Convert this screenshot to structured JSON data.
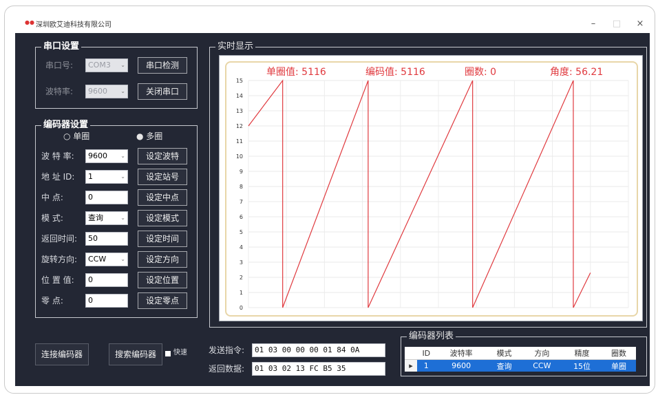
{
  "window": {
    "title": "深圳欧艾迪科技有限公司",
    "controls": {
      "minimize": "–",
      "maximize": "□",
      "close": "×"
    }
  },
  "serial": {
    "group_label": "串口设置",
    "port_label": "串口号:",
    "port_value": "COM3",
    "detect_button": "串口检测",
    "baud_label": "波特率:",
    "baud_value": "9600",
    "close_button": "关闭串口"
  },
  "encoder": {
    "group_label": "编码器设置",
    "mode_single": "单圈",
    "mode_multi": "多圈",
    "rows": [
      {
        "label": "波 特 率:",
        "value": "9600",
        "kind": "combo",
        "button": "设定波特"
      },
      {
        "label": "地 址 ID:",
        "value": "1",
        "kind": "combo",
        "button": "设定站号"
      },
      {
        "label": "中     点:",
        "value": "0",
        "kind": "field",
        "button": "设定中点"
      },
      {
        "label": "模     式:",
        "value": "查询",
        "kind": "combo",
        "button": "设定模式"
      },
      {
        "label": "返回时间:",
        "value": "50",
        "kind": "field",
        "button": "设定时间"
      },
      {
        "label": "旋转方向:",
        "value": "CCW",
        "kind": "combo",
        "button": "设定方向"
      },
      {
        "label": "位 置 值:",
        "value": "0",
        "kind": "field",
        "button": "设定位置"
      },
      {
        "label": "零     点:",
        "value": "0",
        "kind": "field",
        "button": "设定零点"
      }
    ]
  },
  "bottom": {
    "connect_button": "连接编码器",
    "search_button": "搜索编码器",
    "fast_label": "快速",
    "send_label": "发送指令:",
    "send_value": "01 03 00 00 00 01 84 0A",
    "return_label": "返回数据:",
    "return_value": "01 03 02 13 FC B5 35"
  },
  "realtime": {
    "group_label": "实时显示",
    "single_value_label": "单圈值: 5116",
    "encoder_value_label": "编码值: 5116",
    "turns_label": "圈数: 0",
    "angle_label": "角度: 56.21"
  },
  "chart_data": {
    "type": "line",
    "title": "",
    "xlabel": "",
    "ylabel": "",
    "ylim": [
      0,
      15
    ],
    "yticks": [
      "0",
      "1",
      "2",
      "3",
      "4",
      "5",
      "6",
      "7",
      "8",
      "9",
      "10",
      "11",
      "12",
      "13",
      "14",
      "15"
    ],
    "grid": true,
    "color": "#e0393e",
    "series": [
      {
        "values": [
          {
            "x": 0,
            "y": 12
          },
          {
            "x": 0.09,
            "y": 15
          },
          {
            "x": 0.09,
            "y": 0
          },
          {
            "x": 0.315,
            "y": 15
          },
          {
            "x": 0.315,
            "y": 0
          },
          {
            "x": 0.59,
            "y": 15
          },
          {
            "x": 0.59,
            "y": 0
          },
          {
            "x": 0.855,
            "y": 15
          },
          {
            "x": 0.855,
            "y": 0
          },
          {
            "x": 0.9,
            "y": 2.3
          }
        ]
      }
    ]
  },
  "encoder_list": {
    "group_label": "编码器列表",
    "columns": [
      "ID",
      "波特率",
      "模式",
      "方向",
      "精度",
      "圈数"
    ],
    "rows": [
      {
        "marker": "▸",
        "cells": [
          "1",
          "9600",
          "查询",
          "CCW",
          "15位",
          "单圈"
        ]
      }
    ]
  }
}
